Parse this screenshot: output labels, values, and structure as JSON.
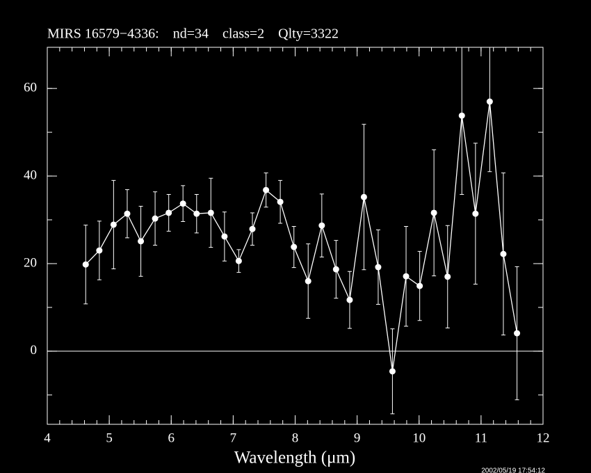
{
  "chart_data": {
    "type": "line",
    "title": "MIRS 16579−4336:    nd=34    class=2    Qlty=3322",
    "x_label": "Wavelength (μm)",
    "timestamp": "2002/05/19 17:54:12",
    "color": "#ffffff",
    "x": [
      4.62,
      4.84,
      5.07,
      5.29,
      5.51,
      5.74,
      5.96,
      6.19,
      6.41,
      6.64,
      6.86,
      7.09,
      7.31,
      7.53,
      7.76,
      7.98,
      8.21,
      8.43,
      8.66,
      8.88,
      9.11,
      9.34,
      9.57,
      9.79,
      10.01,
      10.24,
      10.46,
      10.69,
      10.91,
      11.14,
      11.36,
      11.58
    ],
    "values": [
      19.8,
      23.0,
      28.9,
      31.4,
      25.1,
      30.3,
      31.6,
      33.7,
      31.4,
      31.6,
      26.2,
      20.6,
      27.9,
      36.8,
      34.1,
      23.8,
      16.0,
      28.7,
      18.7,
      11.7,
      35.2,
      19.2,
      -4.6,
      17.1,
      14.9,
      31.6,
      17.0,
      53.8,
      31.4,
      57.0,
      22.2,
      4.1
    ],
    "errors": [
      9.0,
      6.7,
      10.1,
      5.5,
      8.0,
      6.1,
      4.2,
      4.1,
      4.4,
      7.9,
      5.6,
      2.6,
      3.7,
      3.9,
      4.9,
      4.7,
      8.5,
      7.2,
      6.6,
      6.5,
      16.6,
      8.5,
      9.7,
      11.4,
      7.9,
      14.4,
      11.7,
      18.0,
      16.1,
      16.0,
      18.5,
      15.2
    ],
    "xlim": [
      4,
      12
    ],
    "ylim": [
      -16.7,
      69.4
    ],
    "xticks": [
      4,
      5,
      6,
      7,
      8,
      9,
      10,
      11,
      12
    ],
    "yticks": [
      0,
      20,
      40,
      60
    ],
    "x_minor_step": 0.2,
    "y_minor_step": 10,
    "hline": 0
  }
}
